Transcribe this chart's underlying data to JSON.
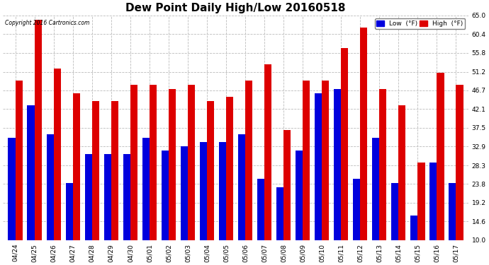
{
  "title": "Dew Point Daily High/Low 20160518",
  "copyright": "Copyright 2016 Cartronics.com",
  "categories": [
    "04/24",
    "04/25",
    "04/26",
    "04/27",
    "04/28",
    "04/29",
    "04/30",
    "05/01",
    "05/02",
    "05/03",
    "05/04",
    "05/05",
    "05/06",
    "05/07",
    "05/08",
    "05/09",
    "05/10",
    "05/11",
    "05/12",
    "05/13",
    "05/14",
    "05/15",
    "05/16",
    "05/17"
  ],
  "low_values": [
    35,
    43,
    36,
    24,
    31,
    31,
    31,
    35,
    32,
    33,
    34,
    34,
    36,
    25,
    23,
    32,
    46,
    47,
    25,
    35,
    24,
    16,
    29,
    24
  ],
  "high_values": [
    49,
    64,
    52,
    46,
    44,
    44,
    48,
    48,
    47,
    48,
    44,
    45,
    49,
    53,
    37,
    49,
    49,
    57,
    62,
    47,
    43,
    29,
    51,
    48
  ],
  "low_color": "#0000dd",
  "high_color": "#dd0000",
  "bg_color": "#ffffff",
  "plot_bg_color": "#ffffff",
  "grid_color": "#bbbbbb",
  "ylim": [
    10.0,
    65.0
  ],
  "ybase": 10.0,
  "yticks": [
    10.0,
    14.6,
    19.2,
    23.8,
    28.3,
    32.9,
    37.5,
    42.1,
    46.7,
    51.2,
    55.8,
    60.4,
    65.0
  ],
  "legend_low_label": "Low  (°F)",
  "legend_high_label": "High  (°F)",
  "title_fontsize": 11,
  "tick_fontsize": 6.5,
  "bar_width": 0.38
}
